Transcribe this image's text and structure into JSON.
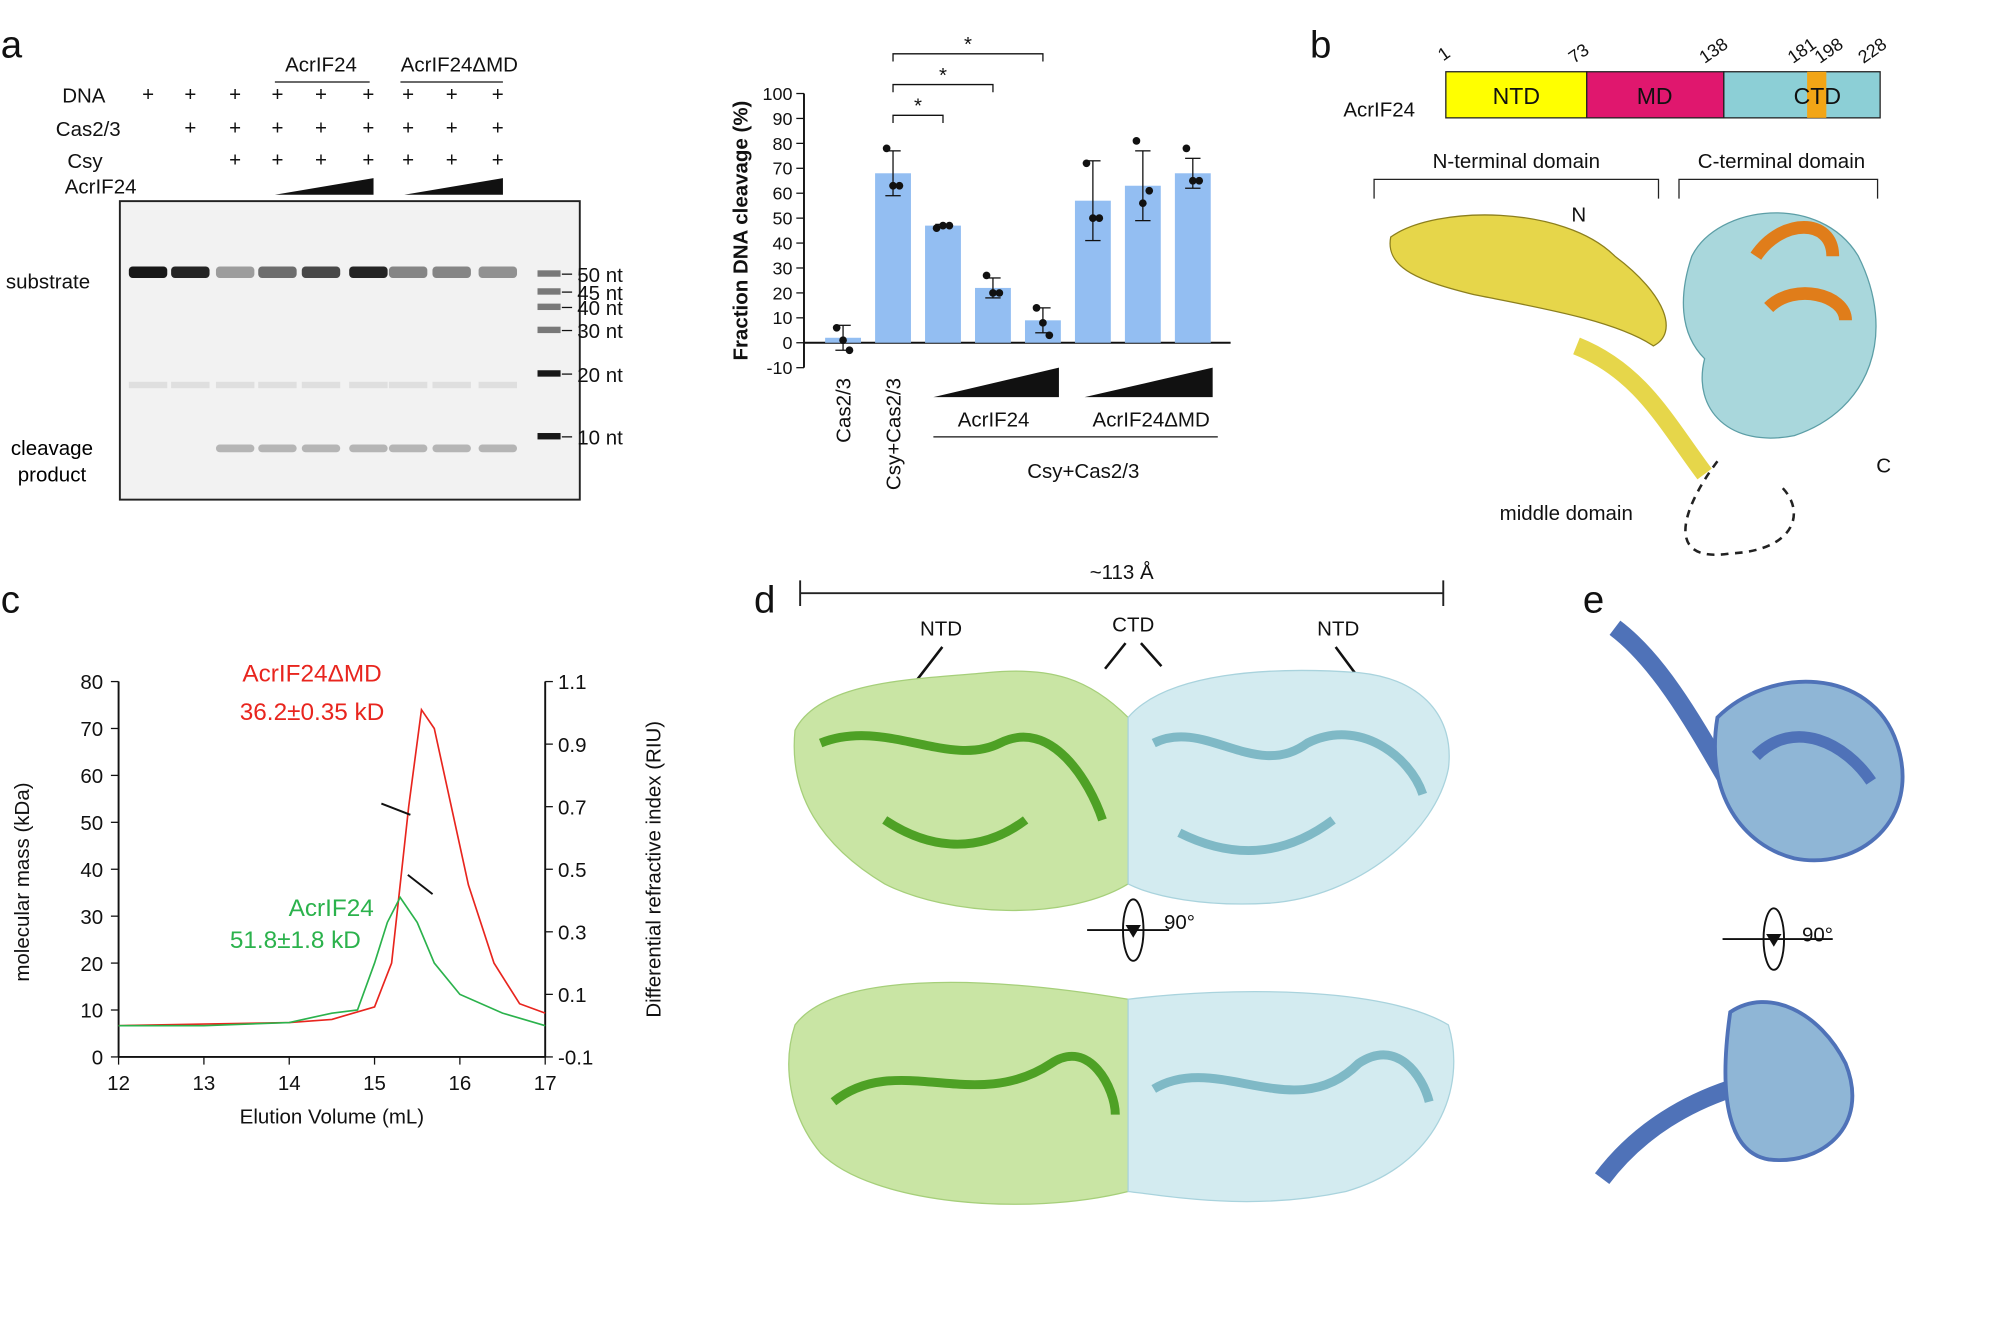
{
  "panel_labels": [
    "a",
    "b",
    "c",
    "d",
    "e"
  ],
  "gel": {
    "rows": [
      "DNA",
      "Cas2/3",
      "Csy",
      "AcrIF24"
    ],
    "groups": [
      "AcrIF24",
      "AcrIF24ΔMD"
    ],
    "plus": "+",
    "bands": [
      "substrate",
      "cleavage product"
    ],
    "ladder": [
      "50 nt",
      "45 nt",
      "40 nt",
      "30 nt",
      "20 nt",
      "10 nt"
    ]
  },
  "domain_map": {
    "protein": "AcrIF24",
    "domains": [
      "NTD",
      "MD",
      "CTD"
    ],
    "positions": [
      "1",
      "73",
      "138",
      "181",
      "198",
      "228"
    ],
    "brackets": [
      "N-terminal domain",
      "C-terminal domain"
    ],
    "labels": [
      "N",
      "C",
      "middle domain"
    ]
  },
  "structure_d": {
    "width": "~113 Å",
    "labels": [
      "NTD",
      "CTD",
      "NTD"
    ],
    "rotation": "90°"
  },
  "structure_e": {
    "rotation": "90°"
  },
  "chart_data": [
    {
      "type": "bar",
      "ylabel": "Fraction DNA cleavage (%)",
      "categories": [
        "Cas2/3",
        "Csy+Cas2/3",
        null,
        null,
        null,
        null,
        null,
        null
      ],
      "values": [
        2,
        68,
        47,
        22,
        9,
        57,
        63,
        68
      ],
      "errors": [
        5,
        9,
        0.5,
        4,
        5,
        16,
        14,
        6
      ],
      "replicates": [
        [
          6,
          1,
          -3
        ],
        [
          78,
          63,
          63
        ],
        [
          46,
          47,
          47
        ],
        [
          27,
          20,
          20
        ],
        [
          14,
          8,
          3
        ],
        [
          72,
          50,
          50
        ],
        [
          81,
          56,
          61
        ],
        [
          78,
          65,
          65
        ]
      ],
      "color": "#93bef2",
      "group_labels": [
        "AcrIF24",
        "AcrIF24ΔMD"
      ],
      "group_label": "Csy+Cas2/3",
      "significance": "*",
      "ylim": [
        -10,
        100
      ],
      "yticks": [
        -10,
        0,
        10,
        20,
        30,
        40,
        50,
        60,
        70,
        80,
        90,
        100
      ]
    },
    {
      "type": "line",
      "xlabel": "Elution Volume (mL)",
      "ylabel": "molecular mass (kDa)",
      "y2label": "Differential refractive index (RIU)",
      "annotations": [
        "36.2±0.35 kD",
        "51.8±1.8 kD"
      ],
      "series": [
        {
          "name": "AcrIF24ΔMD",
          "color": "#e8251e",
          "axis": "y2",
          "x": [
            12,
            13,
            14,
            14.5,
            15,
            15.2,
            15.4,
            15.55,
            15.7,
            15.9,
            16.1,
            16.4,
            16.7,
            17
          ],
          "values": [
            0,
            0.005,
            0.01,
            0.02,
            0.06,
            0.2,
            0.7,
            1.01,
            0.95,
            0.7,
            0.45,
            0.2,
            0.07,
            0.04
          ]
        },
        {
          "name": "AcrIF24",
          "color": "#2bb24c",
          "axis": "y2",
          "x": [
            12,
            13,
            14,
            14.5,
            14.8,
            15,
            15.15,
            15.3,
            15.5,
            15.7,
            16,
            16.5,
            17
          ],
          "values": [
            0,
            0,
            0.01,
            0.04,
            0.05,
            0.2,
            0.33,
            0.41,
            0.33,
            0.2,
            0.1,
            0.04,
            0
          ]
        },
        {
          "color": "#111111",
          "x": [
            15.08,
            15.42
          ],
          "values": [
            54,
            51.6
          ]
        },
        {
          "color": "#111111",
          "x": [
            15.39,
            15.68
          ],
          "values": [
            38.8,
            34.7
          ]
        }
      ],
      "xlim": [
        12,
        17
      ],
      "xticks": [
        12,
        13,
        14,
        15,
        16,
        17
      ],
      "ylim": [
        0,
        80
      ],
      "yticks": [
        0,
        10,
        20,
        30,
        40,
        50,
        60,
        70,
        80
      ],
      "y2lim": [
        -0.1,
        1.1
      ],
      "y2ticks": [
        -0.1,
        0.1,
        0.3,
        0.5,
        0.7,
        0.9,
        1.1
      ]
    }
  ]
}
